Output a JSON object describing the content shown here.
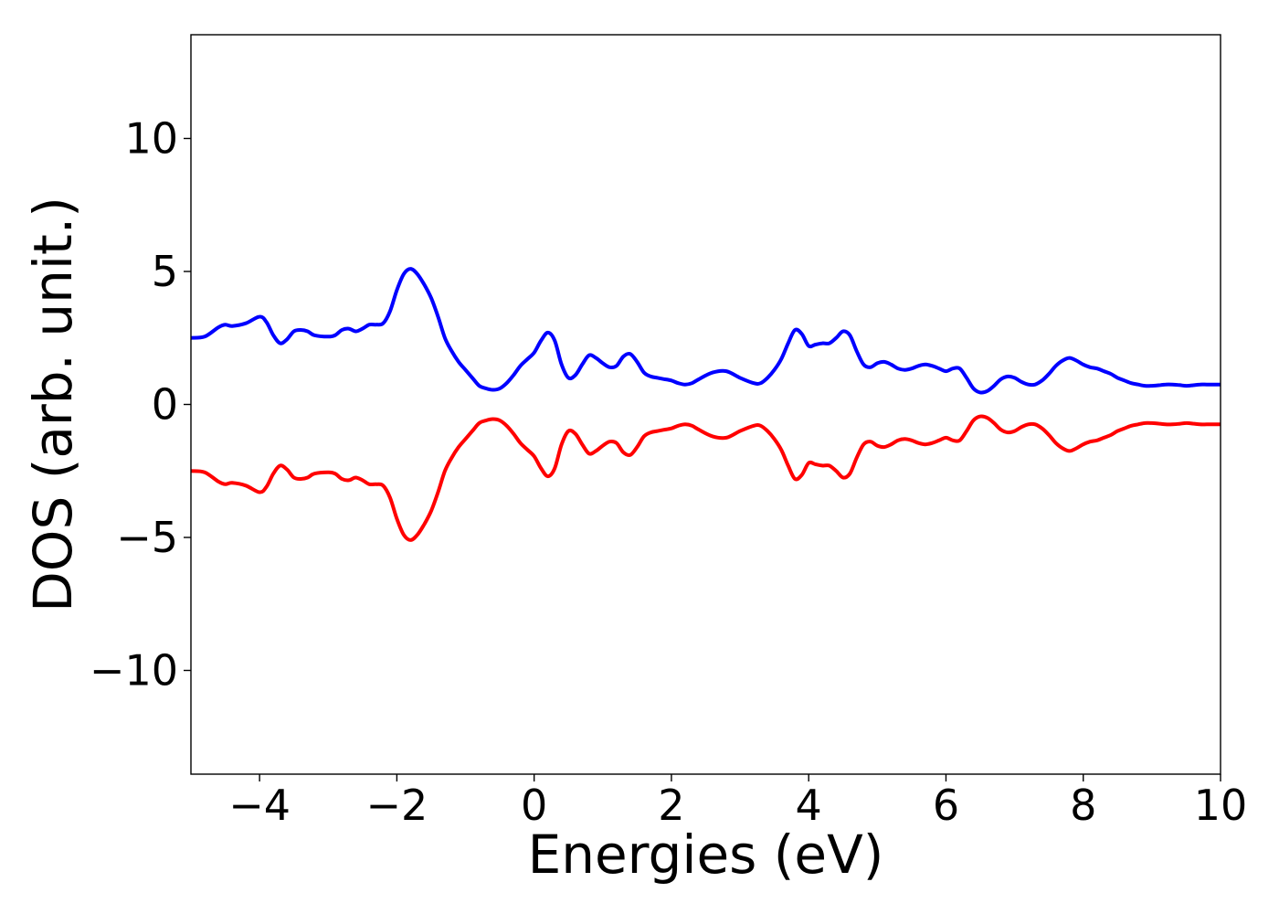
{
  "chart_data": {
    "type": "line",
    "title": "",
    "xlabel": "Energies (eV)",
    "ylabel": "DOS (arb. unit.)",
    "xlim": [
      -5,
      10
    ],
    "ylim": [
      -13.9,
      13.9
    ],
    "xticks": [
      -4,
      -2,
      0,
      2,
      4,
      6,
      8,
      10
    ],
    "xtick_labels": [
      "−4",
      "−2",
      "0",
      "2",
      "4",
      "6",
      "8",
      "10"
    ],
    "yticks": [
      -10,
      -5,
      0,
      5,
      10
    ],
    "ytick_labels": [
      "−10",
      "−5",
      "0",
      "5",
      "10"
    ],
    "grid": false,
    "legend": "none",
    "series": [
      {
        "color": "#0000ff",
        "x": [
          -5.0,
          -4.8,
          -4.6,
          -4.5,
          -4.4,
          -4.2,
          -4.0,
          -3.9,
          -3.8,
          -3.7,
          -3.6,
          -3.5,
          -3.4,
          -3.3,
          -3.2,
          -3.0,
          -2.9,
          -2.8,
          -2.7,
          -2.6,
          -2.5,
          -2.4,
          -2.3,
          -2.2,
          -2.1,
          -2.0,
          -1.9,
          -1.8,
          -1.7,
          -1.6,
          -1.5,
          -1.4,
          -1.3,
          -1.2,
          -1.1,
          -1.0,
          -0.9,
          -0.8,
          -0.7,
          -0.6,
          -0.5,
          -0.4,
          -0.3,
          -0.2,
          -0.1,
          0.0,
          0.1,
          0.2,
          0.3,
          0.4,
          0.5,
          0.6,
          0.7,
          0.8,
          0.9,
          1.0,
          1.1,
          1.2,
          1.3,
          1.4,
          1.5,
          1.6,
          1.7,
          1.8,
          1.9,
          2.0,
          2.1,
          2.2,
          2.3,
          2.4,
          2.6,
          2.8,
          3.0,
          3.2,
          3.3,
          3.4,
          3.5,
          3.6,
          3.7,
          3.8,
          3.9,
          4.0,
          4.1,
          4.2,
          4.3,
          4.4,
          4.5,
          4.6,
          4.7,
          4.8,
          4.9,
          5.0,
          5.1,
          5.2,
          5.3,
          5.4,
          5.5,
          5.6,
          5.7,
          5.8,
          5.9,
          6.0,
          6.1,
          6.2,
          6.3,
          6.4,
          6.5,
          6.6,
          6.7,
          6.8,
          6.9,
          7.0,
          7.1,
          7.2,
          7.3,
          7.4,
          7.5,
          7.6,
          7.7,
          7.8,
          7.9,
          8.0,
          8.1,
          8.2,
          8.3,
          8.4,
          8.5,
          8.6,
          8.7,
          8.8,
          8.9,
          9.0,
          9.1,
          9.2,
          9.3,
          9.4,
          9.5,
          9.6,
          9.7,
          9.8,
          9.9,
          10.0
        ],
        "y": [
          2.5,
          2.55,
          2.9,
          3.0,
          2.95,
          3.05,
          3.3,
          3.1,
          2.6,
          2.3,
          2.45,
          2.75,
          2.8,
          2.75,
          2.6,
          2.55,
          2.6,
          2.8,
          2.85,
          2.75,
          2.85,
          3.0,
          3.0,
          3.05,
          3.5,
          4.3,
          4.9,
          5.1,
          4.9,
          4.5,
          4.0,
          3.3,
          2.5,
          2.0,
          1.6,
          1.3,
          1.0,
          0.7,
          0.6,
          0.55,
          0.6,
          0.8,
          1.1,
          1.45,
          1.7,
          1.95,
          2.4,
          2.7,
          2.4,
          1.5,
          1.0,
          1.1,
          1.5,
          1.85,
          1.75,
          1.55,
          1.4,
          1.45,
          1.8,
          1.9,
          1.6,
          1.2,
          1.05,
          1.0,
          0.95,
          0.9,
          0.8,
          0.75,
          0.8,
          0.95,
          1.2,
          1.25,
          1.0,
          0.8,
          0.8,
          1.0,
          1.3,
          1.7,
          2.3,
          2.8,
          2.65,
          2.2,
          2.25,
          2.3,
          2.3,
          2.5,
          2.75,
          2.6,
          2.0,
          1.5,
          1.4,
          1.55,
          1.6,
          1.5,
          1.35,
          1.3,
          1.35,
          1.45,
          1.5,
          1.45,
          1.35,
          1.25,
          1.35,
          1.35,
          1.0,
          0.6,
          0.45,
          0.5,
          0.7,
          0.95,
          1.05,
          1.0,
          0.85,
          0.75,
          0.75,
          0.9,
          1.15,
          1.45,
          1.65,
          1.75,
          1.65,
          1.5,
          1.4,
          1.35,
          1.25,
          1.15,
          1.0,
          0.9,
          0.8,
          0.75,
          0.7,
          0.7,
          0.72,
          0.75,
          0.75,
          0.73,
          0.7,
          0.72,
          0.75,
          0.75,
          0.75,
          0.75
        ]
      },
      {
        "color": "#ff0000",
        "x": [
          -5.0,
          -4.8,
          -4.6,
          -4.5,
          -4.4,
          -4.2,
          -4.0,
          -3.9,
          -3.8,
          -3.7,
          -3.6,
          -3.5,
          -3.4,
          -3.3,
          -3.2,
          -3.0,
          -2.9,
          -2.8,
          -2.7,
          -2.6,
          -2.5,
          -2.4,
          -2.3,
          -2.2,
          -2.1,
          -2.0,
          -1.9,
          -1.8,
          -1.7,
          -1.6,
          -1.5,
          -1.4,
          -1.3,
          -1.2,
          -1.1,
          -1.0,
          -0.9,
          -0.8,
          -0.7,
          -0.6,
          -0.5,
          -0.4,
          -0.3,
          -0.2,
          -0.1,
          0.0,
          0.1,
          0.2,
          0.3,
          0.4,
          0.5,
          0.6,
          0.7,
          0.8,
          0.9,
          1.0,
          1.1,
          1.2,
          1.3,
          1.4,
          1.5,
          1.6,
          1.7,
          1.8,
          1.9,
          2.0,
          2.1,
          2.2,
          2.3,
          2.4,
          2.6,
          2.8,
          3.0,
          3.2,
          3.3,
          3.4,
          3.5,
          3.6,
          3.7,
          3.8,
          3.9,
          4.0,
          4.1,
          4.2,
          4.3,
          4.4,
          4.5,
          4.6,
          4.7,
          4.8,
          4.9,
          5.0,
          5.1,
          5.2,
          5.3,
          5.4,
          5.5,
          5.6,
          5.7,
          5.8,
          5.9,
          6.0,
          6.1,
          6.2,
          6.3,
          6.4,
          6.5,
          6.6,
          6.7,
          6.8,
          6.9,
          7.0,
          7.1,
          7.2,
          7.3,
          7.4,
          7.5,
          7.6,
          7.7,
          7.8,
          7.9,
          8.0,
          8.1,
          8.2,
          8.3,
          8.4,
          8.5,
          8.6,
          8.7,
          8.8,
          8.9,
          9.0,
          9.1,
          9.2,
          9.3,
          9.4,
          9.5,
          9.6,
          9.7,
          9.8,
          9.9,
          10.0
        ],
        "y": [
          -2.5,
          -2.55,
          -2.9,
          -3.0,
          -2.95,
          -3.05,
          -3.3,
          -3.1,
          -2.6,
          -2.3,
          -2.45,
          -2.75,
          -2.8,
          -2.75,
          -2.6,
          -2.55,
          -2.6,
          -2.8,
          -2.85,
          -2.75,
          -2.85,
          -3.0,
          -3.0,
          -3.05,
          -3.5,
          -4.3,
          -4.9,
          -5.1,
          -4.9,
          -4.5,
          -4.0,
          -3.3,
          -2.5,
          -2.0,
          -1.6,
          -1.3,
          -1.0,
          -0.7,
          -0.6,
          -0.55,
          -0.6,
          -0.8,
          -1.1,
          -1.45,
          -1.7,
          -1.95,
          -2.4,
          -2.7,
          -2.4,
          -1.5,
          -1.0,
          -1.1,
          -1.5,
          -1.85,
          -1.75,
          -1.55,
          -1.4,
          -1.45,
          -1.8,
          -1.9,
          -1.6,
          -1.2,
          -1.05,
          -1.0,
          -0.95,
          -0.9,
          -0.8,
          -0.75,
          -0.8,
          -0.95,
          -1.2,
          -1.25,
          -1.0,
          -0.8,
          -0.8,
          -1.0,
          -1.3,
          -1.7,
          -2.3,
          -2.8,
          -2.65,
          -2.2,
          -2.25,
          -2.3,
          -2.3,
          -2.5,
          -2.75,
          -2.6,
          -2.0,
          -1.5,
          -1.4,
          -1.55,
          -1.6,
          -1.5,
          -1.35,
          -1.3,
          -1.35,
          -1.45,
          -1.5,
          -1.45,
          -1.35,
          -1.25,
          -1.35,
          -1.35,
          -1.0,
          -0.6,
          -0.45,
          -0.5,
          -0.7,
          -0.95,
          -1.05,
          -1.0,
          -0.85,
          -0.75,
          -0.75,
          -0.9,
          -1.15,
          -1.45,
          -1.65,
          -1.75,
          -1.65,
          -1.5,
          -1.4,
          -1.35,
          -1.25,
          -1.15,
          -1.0,
          -0.9,
          -0.8,
          -0.75,
          -0.7,
          -0.7,
          -0.72,
          -0.75,
          -0.75,
          -0.73,
          -0.7,
          -0.72,
          -0.75,
          -0.75,
          -0.75,
          -0.75
        ]
      }
    ]
  }
}
